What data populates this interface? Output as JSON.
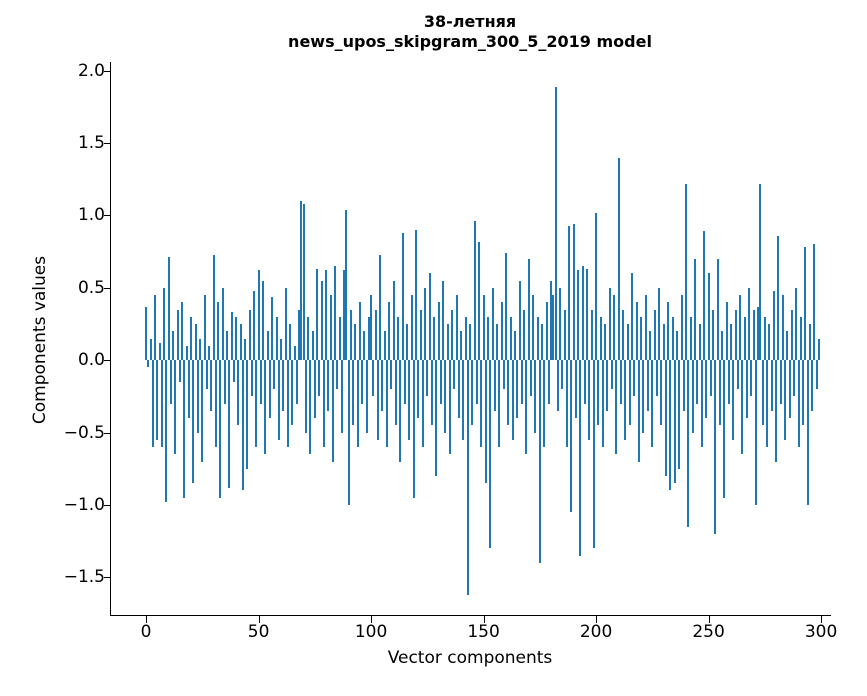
{
  "figure": {
    "title_line1": "38-летняя",
    "title_line2": "news_upos_skipgram_300_5_2019 model",
    "xlabel": "Vector components",
    "ylabel": "Components values"
  },
  "chart_data": {
    "type": "bar",
    "title": "38-летняя\nnews_upos_skipgram_300_5_2019 model",
    "xlabel": "Vector components",
    "ylabel": "Components values",
    "legend": null,
    "grid": false,
    "bar_color": "#1f77b4",
    "xlim": [
      -15.6,
      304.4
    ],
    "ylim": [
      -1.76,
      2.06
    ],
    "xtick_values": [
      0,
      50,
      100,
      150,
      200,
      250,
      300
    ],
    "xtick_labels": [
      "0",
      "50",
      "100",
      "150",
      "200",
      "250",
      "300"
    ],
    "ytick_values": [
      2.0,
      1.5,
      1.0,
      0.5,
      0.0,
      -0.5,
      -1.0,
      -1.5
    ],
    "ytick_labels": [
      "2.0",
      "1.5",
      "1.0",
      "0.5",
      "0.0",
      "−0.5",
      "−1.0",
      "−1.5"
    ],
    "x_start": 0,
    "values": [
      0.37,
      -0.05,
      0.15,
      -0.6,
      0.45,
      -0.55,
      0.12,
      -0.6,
      0.5,
      -0.98,
      0.71,
      -0.3,
      0.2,
      -0.65,
      0.35,
      -0.15,
      0.4,
      -0.95,
      0.1,
      -0.4,
      0.3,
      -0.85,
      0.25,
      -0.5,
      0.15,
      -0.7,
      0.45,
      -0.2,
      0.1,
      -0.35,
      0.73,
      -0.6,
      0.4,
      -0.95,
      0.5,
      -0.3,
      0.2,
      -0.88,
      0.33,
      -0.15,
      0.3,
      -0.45,
      0.25,
      -0.9,
      0.15,
      -0.75,
      0.35,
      -0.25,
      0.48,
      -0.6,
      0.62,
      -0.3,
      0.55,
      -0.65,
      0.2,
      -0.4,
      0.44,
      -0.2,
      0.3,
      -0.55,
      0.15,
      -0.35,
      0.5,
      -0.6,
      0.25,
      -0.45,
      0.1,
      -0.3,
      0.35,
      1.1,
      1.08,
      -0.5,
      0.3,
      -0.65,
      0.2,
      -0.4,
      0.63,
      -0.25,
      0.55,
      -0.6,
      0.62,
      -0.35,
      0.45,
      -0.7,
      0.65,
      -0.2,
      0.3,
      -0.5,
      0.62,
      1.04,
      -1.0,
      0.35,
      -0.45,
      0.25,
      -0.6,
      0.4,
      -0.3,
      0.2,
      -0.5,
      0.3,
      0.45,
      -0.25,
      0.35,
      -0.55,
      0.73,
      -0.35,
      0.2,
      -0.6,
      0.4,
      -0.2,
      0.55,
      -0.45,
      0.3,
      -0.7,
      0.88,
      -0.3,
      0.25,
      -0.55,
      0.45,
      -0.95,
      0.9,
      -0.4,
      0.35,
      -0.6,
      0.5,
      -0.25,
      0.6,
      -0.45,
      0.3,
      -0.8,
      0.4,
      -0.3,
      0.55,
      -0.5,
      0.25,
      -0.65,
      0.35,
      -0.2,
      0.45,
      -0.4,
      0.2,
      -0.55,
      0.3,
      -1.62,
      0.25,
      -0.45,
      0.96,
      -0.3,
      0.82,
      -0.6,
      0.45,
      -0.85,
      0.3,
      -1.3,
      0.5,
      -0.35,
      0.25,
      -0.6,
      0.4,
      -0.2,
      0.74,
      -0.45,
      0.3,
      -0.55,
      0.2,
      -0.4,
      0.55,
      -0.3,
      0.35,
      -0.65,
      0.7,
      -0.25,
      0.45,
      -0.5,
      0.3,
      -1.4,
      0.25,
      -0.6,
      0.4,
      -0.3,
      0.55,
      0.45,
      1.89,
      -0.35,
      0.5,
      -0.2,
      0.35,
      -0.6,
      0.93,
      -1.05,
      0.94,
      -0.4,
      0.62,
      -1.35,
      0.65,
      -0.3,
      0.63,
      -0.55,
      0.35,
      -1.3,
      1.02,
      -0.45,
      0.3,
      -0.6,
      0.25,
      -0.35,
      0.5,
      -0.2,
      0.45,
      -0.65,
      1.4,
      -0.3,
      0.35,
      -0.55,
      0.25,
      -0.45,
      0.6,
      -0.25,
      0.4,
      -0.7,
      0.3,
      -0.5,
      0.45,
      -0.35,
      0.2,
      -0.6,
      0.35,
      -0.25,
      0.5,
      -0.45,
      0.25,
      -0.8,
      0.4,
      -0.9,
      0.3,
      -0.85,
      0.2,
      -0.75,
      0.45,
      -0.35,
      1.22,
      -1.15,
      0.3,
      -0.5,
      0.7,
      -0.3,
      0.25,
      -0.6,
      0.89,
      -0.4,
      0.6,
      -0.25,
      0.35,
      -1.2,
      0.7,
      -0.45,
      0.2,
      -0.95,
      0.4,
      -0.3,
      0.25,
      -0.55,
      0.35,
      -0.2,
      0.45,
      -0.65,
      0.3,
      -0.4,
      0.5,
      -0.25,
      0.35,
      -1.0,
      0.37,
      1.22,
      -0.45,
      0.3,
      -0.6,
      0.25,
      -0.35,
      0.48,
      -0.7,
      0.86,
      -0.3,
      0.45,
      -0.55,
      0.2,
      -0.4,
      0.35,
      -0.25,
      0.5,
      -0.6,
      0.3,
      -0.45,
      0.78,
      -1.0,
      0.25,
      -0.35,
      0.8,
      -0.2,
      0.15
    ]
  }
}
